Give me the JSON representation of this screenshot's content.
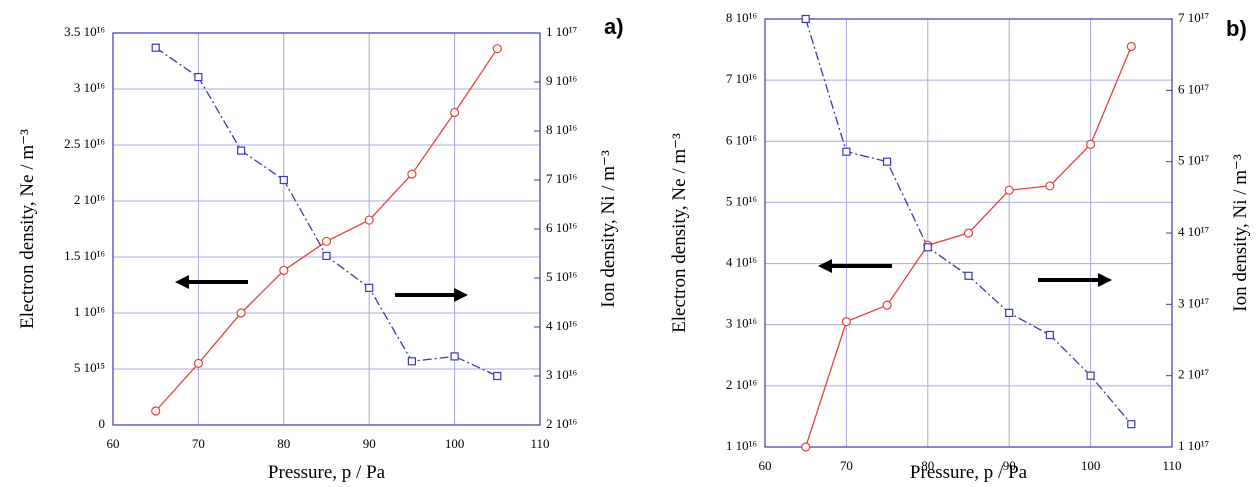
{
  "chart_data": [
    {
      "type": "line",
      "annotation": "a)",
      "x_label": "Pressure, p / Pa",
      "y_label": "Electron density, Ne / m⁻³",
      "y2_label": "Ion density, Ni / m⁻³",
      "x": [
        65,
        70,
        75,
        80,
        85,
        90,
        95,
        100,
        105
      ],
      "series": [
        {
          "color": "#e8413c",
          "values": [
            1250000000000000.0,
            5500000000000000.0,
            1e+16,
            1.38e+16,
            1.64e+16,
            1.83e+16,
            2.24e+16,
            2.79e+16,
            3.36e+16
          ]
        },
        {
          "color": "#3a3ab4",
          "axis": "y2",
          "values": [
            9.7e+16,
            9.1e+16,
            7.6e+16,
            7e+16,
            5.45e+16,
            4.8e+16,
            3.3e+16,
            3.4e+16,
            3e+16
          ]
        }
      ],
      "xlim": [
        60,
        110
      ],
      "xticks": [
        60,
        70,
        80,
        90,
        100,
        110
      ],
      "ylim": [
        0,
        3.5e+16
      ],
      "yticks": [
        0,
        {
          "value": 5000000000000000.0,
          "label": "5 10¹⁵"
        },
        {
          "value": 1e+16,
          "label": "1 10¹⁶"
        },
        {
          "value": 1.5e+16,
          "label": "1.5 10¹⁶"
        },
        {
          "value": 2e+16,
          "label": "2 10¹⁶"
        },
        {
          "value": 2.5e+16,
          "label": "2.5 10¹⁶"
        },
        {
          "value": 3e+16,
          "label": "3 10¹⁶"
        },
        {
          "value": 3.5e+16,
          "label": "3.5 10¹⁶"
        }
      ],
      "y2lim": [
        2e+16,
        1e+17
      ],
      "y2ticks": [
        {
          "value": 2e+16,
          "label": "2 10¹⁶"
        },
        {
          "value": 3e+16,
          "label": "3 10¹⁶"
        },
        {
          "value": 4e+16,
          "label": "4 10¹⁶"
        },
        {
          "value": 5e+16,
          "label": "5 10¹⁶"
        },
        {
          "value": 6e+16,
          "label": "6 10¹⁶"
        },
        {
          "value": 7e+16,
          "label": "7 10¹⁶"
        },
        {
          "value": 8e+16,
          "label": "8 10¹⁶"
        },
        {
          "value": 9e+16,
          "label": "9 10¹⁶"
        },
        {
          "value": 1e+17,
          "label": "1 10¹⁷"
        }
      ],
      "grid": true
    },
    {
      "type": "line",
      "annotation": "b)",
      "x_label": "Pressure, p / Pa",
      "y_label": "Electron density, Ne / m⁻³",
      "y2_label": "Ion density, Ni / m⁻³",
      "x": [
        65,
        70,
        75,
        80,
        85,
        90,
        95,
        100,
        105
      ],
      "series": [
        {
          "color": "#e8413c",
          "values": [
            1e+16,
            3.05e+16,
            3.32e+16,
            4.3e+16,
            4.5e+16,
            5.2e+16,
            5.27e+16,
            5.95e+16,
            7.55e+16
          ]
        },
        {
          "color": "#3a3ab4",
          "axis": "y2",
          "values": [
            7e+17,
            5.14e+17,
            5e+17,
            3.8e+17,
            3.4e+17,
            2.88e+17,
            2.57e+17,
            2e+17,
            1.32e+17
          ]
        }
      ],
      "xlim": [
        60,
        110
      ],
      "xticks": [
        60,
        70,
        80,
        90,
        100,
        110
      ],
      "ylim": [
        1e+16,
        8e+16
      ],
      "yticks": [
        {
          "value": 1e+16,
          "label": "1 10¹⁶"
        },
        {
          "value": 2e+16,
          "label": "2 10¹⁶"
        },
        {
          "value": 3e+16,
          "label": "3 10¹⁶"
        },
        {
          "value": 4e+16,
          "label": "4 10¹⁶"
        },
        {
          "value": 5e+16,
          "label": "5 10¹⁶"
        },
        {
          "value": 6e+16,
          "label": "6 10¹⁶"
        },
        {
          "value": 7e+16,
          "label": "7 10¹⁶"
        },
        {
          "value": 8e+16,
          "label": "8 10¹⁶"
        }
      ],
      "y2lim": [
        1e+17,
        7e+17
      ],
      "y2ticks": [
        {
          "value": 1e+17,
          "label": "1 10¹⁷"
        },
        {
          "value": 2e+17,
          "label": "2 10¹⁷"
        },
        {
          "value": 3e+17,
          "label": "3 10¹⁷"
        },
        {
          "value": 4e+17,
          "label": "4 10¹⁷"
        },
        {
          "value": 5e+17,
          "label": "5 10¹⁷"
        },
        {
          "value": 6e+17,
          "label": "6 10¹⁷"
        },
        {
          "value": 7e+17,
          "label": "7 10¹⁷"
        }
      ],
      "grid": true
    }
  ]
}
